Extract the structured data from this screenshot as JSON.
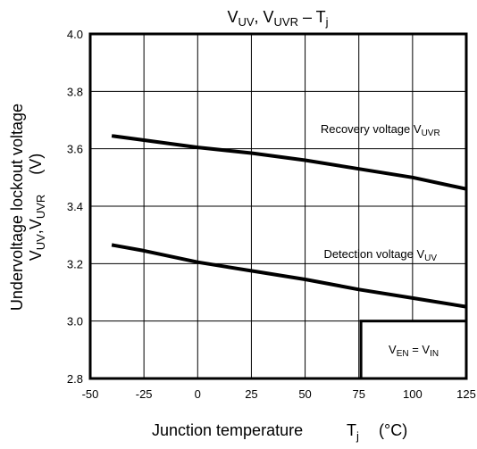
{
  "chart_data": {
    "type": "line",
    "title": {
      "main": "V",
      "sub1": "UV",
      "sep": ", V",
      "sub2": "UVR",
      "dash": " – T",
      "sub3": "j"
    },
    "xlabel": {
      "main": "Junction temperature",
      "t": "T",
      "tsub": "j",
      "unit": "(°C)"
    },
    "ylabel": {
      "line1": "Undervoltage lockout voltage",
      "l2a": "V",
      "l2b": "UV",
      "l2c": ",V",
      "l2d": "UVR",
      "l2e": "(V)"
    },
    "xlim": [
      -50,
      125
    ],
    "ylim": [
      2.8,
      4.0
    ],
    "xticks": [
      "-50",
      "-25",
      "0",
      "25",
      "50",
      "75",
      "100",
      "125"
    ],
    "yticks": [
      "2.8",
      "3.0",
      "3.2",
      "3.4",
      "3.6",
      "3.8",
      "4.0"
    ],
    "grid": true,
    "series": [
      {
        "name": "Recovery voltage VUVR",
        "label": {
          "main": "Recovery voltage V",
          "sub": "UVR"
        },
        "x": [
          -40,
          -25,
          0,
          25,
          50,
          75,
          100,
          125
        ],
        "y": [
          3.645,
          3.63,
          3.605,
          3.585,
          3.56,
          3.53,
          3.5,
          3.46
        ]
      },
      {
        "name": "Detection voltage VUV",
        "label": {
          "main": "Detection voltage V",
          "sub": "UV"
        },
        "x": [
          -40,
          -25,
          0,
          25,
          50,
          75,
          100,
          125
        ],
        "y": [
          3.265,
          3.245,
          3.205,
          3.175,
          3.145,
          3.11,
          3.08,
          3.05
        ]
      }
    ],
    "annotation": {
      "a": "V",
      "as": "EN",
      "b": " = V",
      "bs": "IN"
    }
  }
}
